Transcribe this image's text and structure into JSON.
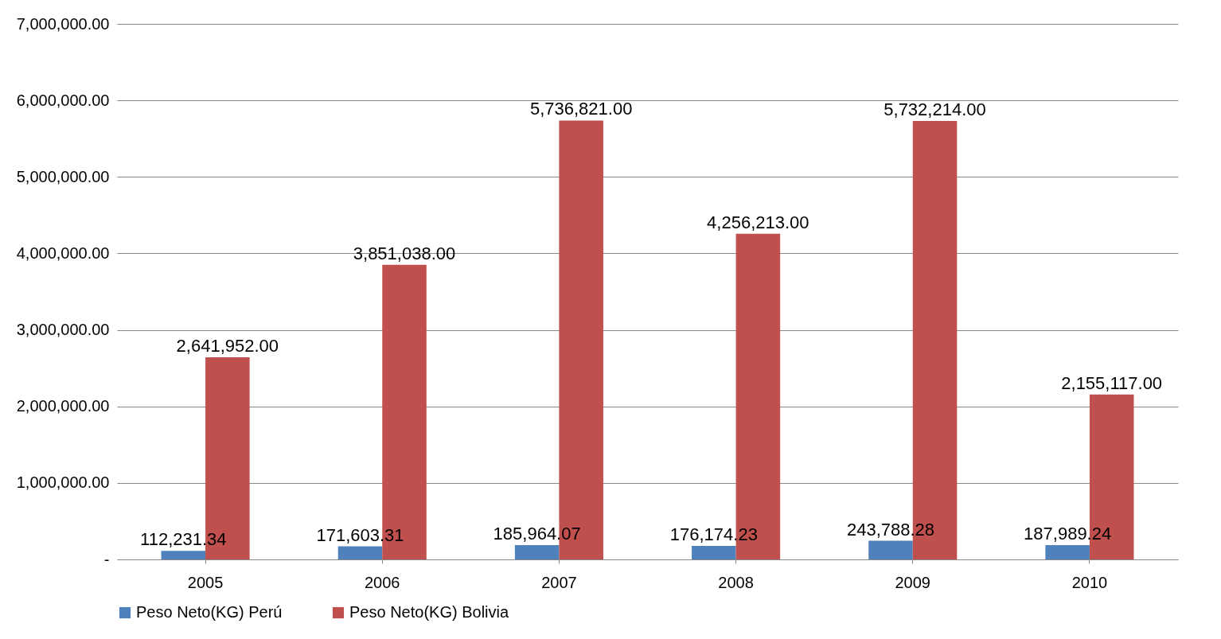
{
  "chart_data": {
    "type": "bar",
    "categories": [
      "2005",
      "2006",
      "2007",
      "2008",
      "2009",
      "2010"
    ],
    "series": [
      {
        "name": "Peso Neto(KG) Perú",
        "color": "#4f81bd",
        "values": [
          112231.34,
          171603.31,
          185964.07,
          176174.23,
          243788.28,
          187989.24
        ],
        "value_labels": [
          "112,231.34",
          "171,603.31",
          "185,964.07",
          "176,174.23",
          "243,788.28",
          "187,989.24"
        ]
      },
      {
        "name": "Peso Neto(KG) Bolivia",
        "color": "#c0504d",
        "values": [
          2641952,
          3851038,
          5736821,
          4256213,
          5732214,
          2155117
        ],
        "value_labels": [
          "2,641,952.00",
          "3,851,038.00",
          "5,736,821.00",
          "4,256,213.00",
          "5,732,214.00",
          "2,155,117.00"
        ]
      }
    ],
    "ylim": [
      0,
      7000000
    ],
    "yticks": [
      {
        "value": 0,
        "label": "-"
      },
      {
        "value": 1000000,
        "label": "1,000,000.00"
      },
      {
        "value": 2000000,
        "label": "2,000,000.00"
      },
      {
        "value": 3000000,
        "label": "3,000,000.00"
      },
      {
        "value": 4000000,
        "label": "4,000,000.00"
      },
      {
        "value": 5000000,
        "label": "5,000,000.00"
      },
      {
        "value": 6000000,
        "label": "6,000,000.00"
      },
      {
        "value": 7000000,
        "label": "7,000,000.00"
      }
    ],
    "grid": "y",
    "legend": "bottom"
  }
}
